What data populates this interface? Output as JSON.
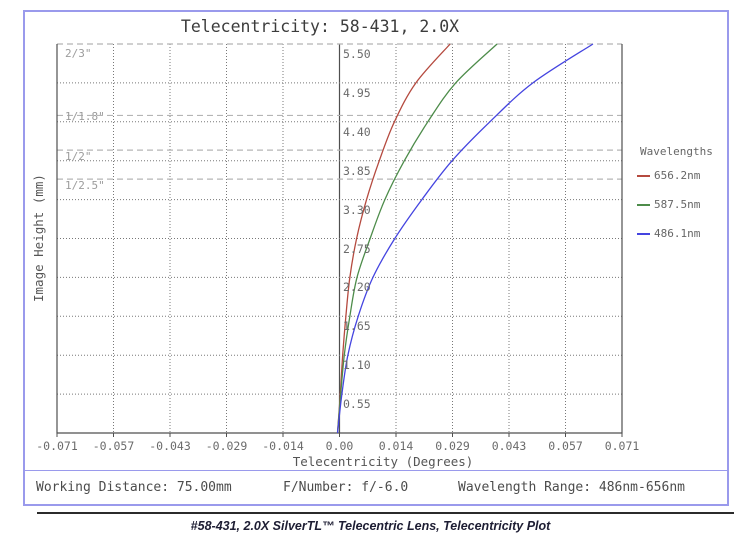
{
  "chart_data": {
    "type": "line",
    "title": "Telecentricity: 58-431, 2.0X",
    "xlabel": "Telecentricity (Degrees)",
    "ylabel": "Image Height (mm)",
    "xlim": [
      -0.071,
      0.071
    ],
    "ylim": [
      0,
      5.5
    ],
    "grid": "dotted",
    "xtick_labels": [
      "-0.071",
      "-0.057",
      "-0.043",
      "-0.029",
      "-0.014",
      "0.00",
      "0.014",
      "0.029",
      "0.043",
      "0.057",
      "0.071"
    ],
    "ytick_labels": [
      "0.55",
      "1.10",
      "1.65",
      "2.20",
      "2.75",
      "3.30",
      "3.85",
      "4.40",
      "4.95",
      "5.50"
    ],
    "legend": {
      "title": "Wavelengths",
      "position": "right",
      "entries": [
        "656.2nm",
        "587.5nm",
        "486.1nm"
      ]
    },
    "series": [
      {
        "name": "656.2nm",
        "color": "#b54a3f",
        "points": [
          [
            -0.0005,
            0
          ],
          [
            0.0002,
            0.55
          ],
          [
            0.0008,
            1.1
          ],
          [
            0.0016,
            1.65
          ],
          [
            0.0026,
            2.2
          ],
          [
            0.0043,
            2.75
          ],
          [
            0.0068,
            3.3
          ],
          [
            0.01,
            3.85
          ],
          [
            0.0138,
            4.4
          ],
          [
            0.0192,
            4.95
          ],
          [
            0.0278,
            5.5
          ]
        ]
      },
      {
        "name": "587.5nm",
        "color": "#4d8c4a",
        "points": [
          [
            -0.0005,
            0
          ],
          [
            0.0003,
            0.55
          ],
          [
            0.0012,
            1.1
          ],
          [
            0.0026,
            1.65
          ],
          [
            0.0044,
            2.2
          ],
          [
            0.0077,
            2.75
          ],
          [
            0.0114,
            3.3
          ],
          [
            0.0163,
            3.85
          ],
          [
            0.0222,
            4.4
          ],
          [
            0.0292,
            4.95
          ],
          [
            0.0396,
            5.5
          ]
        ]
      },
      {
        "name": "486.1nm",
        "color": "#4444e0",
        "points": [
          [
            -0.0005,
            0
          ],
          [
            0.0006,
            0.55
          ],
          [
            0.0021,
            1.1
          ],
          [
            0.0047,
            1.65
          ],
          [
            0.0084,
            2.2
          ],
          [
            0.0139,
            2.75
          ],
          [
            0.0207,
            3.3
          ],
          [
            0.0283,
            3.85
          ],
          [
            0.0378,
            4.4
          ],
          [
            0.0486,
            4.95
          ],
          [
            0.0637,
            5.5
          ]
        ]
      }
    ],
    "sensor_format_lines": [
      {
        "label": "2/3\"",
        "image_height_mm": 5.5
      },
      {
        "label": "1/1.8\"",
        "image_height_mm": 4.49
      },
      {
        "label": "1/2\"",
        "image_height_mm": 4.0
      },
      {
        "label": "1/2.5\"",
        "image_height_mm": 3.59
      }
    ],
    "colors": {
      "frame": "#4f4f4f",
      "zero_axis": "#4f4f4f",
      "grid_dotted": "#787878",
      "sensor_dashed": "#b5b5b5",
      "tick_text": "#6b6b6b",
      "sensor_text": "#9c9c9c",
      "border": "#9a9aec"
    }
  },
  "footer": {
    "working_distance": "Working Distance: 75.00mm",
    "f_number": "F/Number: f/-6.0",
    "wavelength_range": "Wavelength Range: 486nm-656nm"
  },
  "caption": {
    "text": "#58-431, 2.0X SilverTL™ Telecentric Lens, Telecentricity Plot"
  }
}
